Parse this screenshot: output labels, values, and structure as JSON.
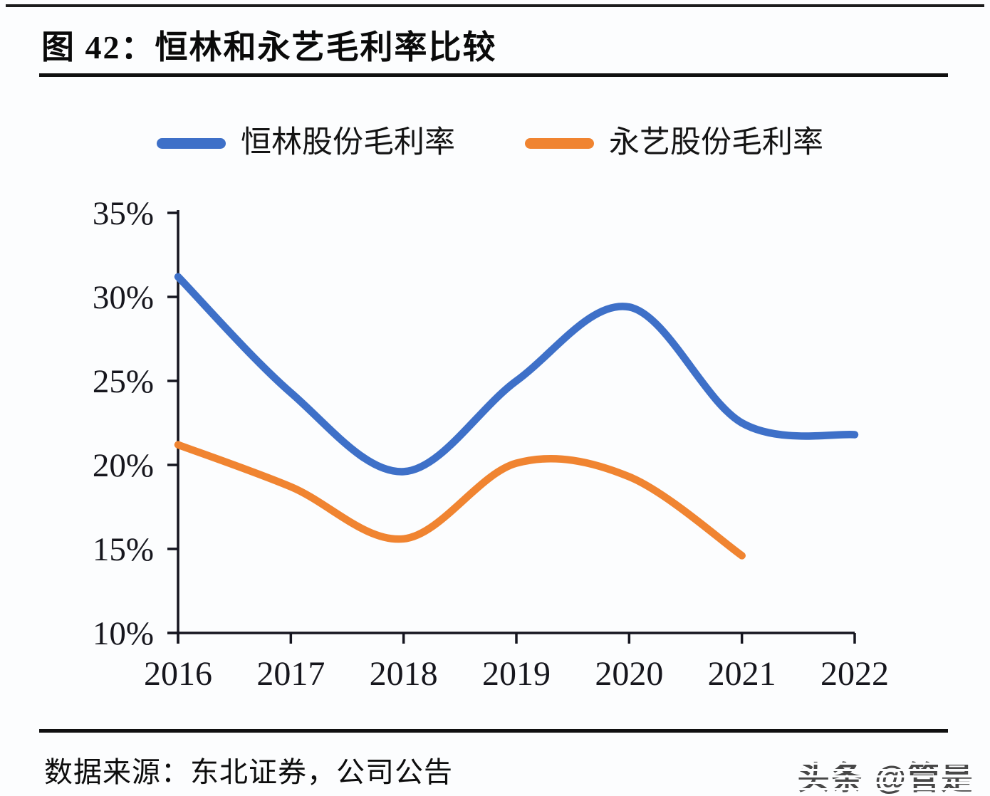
{
  "header": {
    "title": "图 42：恒林和永艺毛利率比较"
  },
  "legend": [
    {
      "label": "恒林股份毛利率",
      "color": "#3e70c8"
    },
    {
      "label": "永艺股份毛利率",
      "color": "#f08431"
    }
  ],
  "footer": {
    "source": "数据来源：东北证券，公司公告",
    "watermark": "头条 @管是"
  },
  "chart_data": {
    "type": "line",
    "title": "恒林和永艺毛利率比较",
    "x": [
      2016,
      2017,
      2018,
      2019,
      2020,
      2021,
      2022
    ],
    "xticks": [
      "2016",
      "2017",
      "2018",
      "2019",
      "2020",
      "2021",
      "2022"
    ],
    "series": [
      {
        "name": "恒林股份毛利率",
        "color": "#3e70c8",
        "values": [
          31.2,
          24.3,
          19.6,
          25.0,
          29.4,
          22.5,
          21.8
        ]
      },
      {
        "name": "永艺股份毛利率",
        "color": "#f08431",
        "values": [
          21.2,
          18.7,
          15.6,
          20.1,
          19.3,
          14.6,
          null
        ]
      }
    ],
    "ylim": [
      10,
      35
    ],
    "ytick_step": 5,
    "yticks": [
      "35%",
      "30%",
      "25%",
      "20%",
      "15%",
      "10%"
    ],
    "ylabel": "",
    "xlabel": "",
    "grid": false,
    "legend_position": "top",
    "axis_color": "#15151f"
  }
}
